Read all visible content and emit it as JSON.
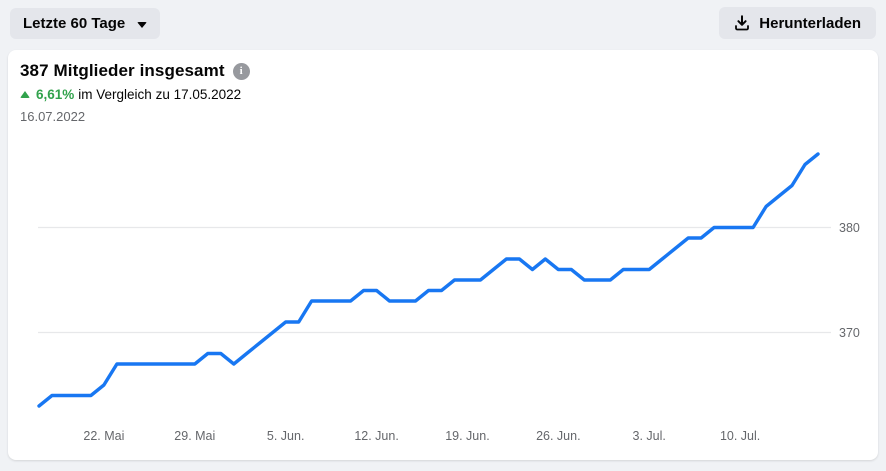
{
  "toolbar": {
    "range_dropdown": {
      "label": "Letzte 60 Tage",
      "icon": "caret-down-icon"
    },
    "download_button": {
      "label": "Herunterladen",
      "icon": "download-icon"
    }
  },
  "panel": {
    "title": "387 Mitglieder insgesamt",
    "info_icon": "info-icon",
    "delta": {
      "direction": "up",
      "value": "6,61%",
      "suffix": "im Vergleich zu 17.05.2022"
    },
    "current_date": "16.07.2022"
  },
  "colors": {
    "line_blue": "#1877f2",
    "positive_green": "#31a24c",
    "text_primary": "#050505",
    "text_secondary": "#65676b",
    "gridline": "#e7e8ea",
    "page_background": "#f0f2f5",
    "button_background": "#e4e6eb",
    "card_background": "#ffffff"
  },
  "chart_data": {
    "type": "line",
    "title": "387 Mitglieder insgesamt",
    "x_start_date": "17.05.2022",
    "x_end_date": "16.07.2022",
    "x_tick_labels": [
      "22. Mai",
      "29. Mai",
      "5. Jun.",
      "12. Jun.",
      "19. Jun.",
      "26. Jun.",
      "3. Jul.",
      "10. Jul."
    ],
    "x_tick_indices": [
      5,
      12,
      19,
      26,
      33,
      40,
      47,
      54
    ],
    "y_ticks": [
      380,
      370
    ],
    "ylim": [
      361,
      389
    ],
    "grid": "horizontal",
    "legend": "none",
    "series": [
      {
        "name": "Mitglieder insgesamt",
        "color": "#1877f2",
        "values": [
          363,
          364,
          364,
          364,
          364,
          365,
          367,
          367,
          367,
          367,
          367,
          367,
          367,
          368,
          368,
          367,
          368,
          369,
          370,
          371,
          371,
          373,
          373,
          373,
          373,
          374,
          374,
          373,
          373,
          373,
          374,
          374,
          375,
          375,
          375,
          376,
          377,
          377,
          376,
          377,
          376,
          376,
          375,
          375,
          375,
          376,
          376,
          376,
          377,
          378,
          379,
          379,
          380,
          380,
          380,
          380,
          382,
          383,
          384,
          386,
          387
        ]
      }
    ]
  }
}
